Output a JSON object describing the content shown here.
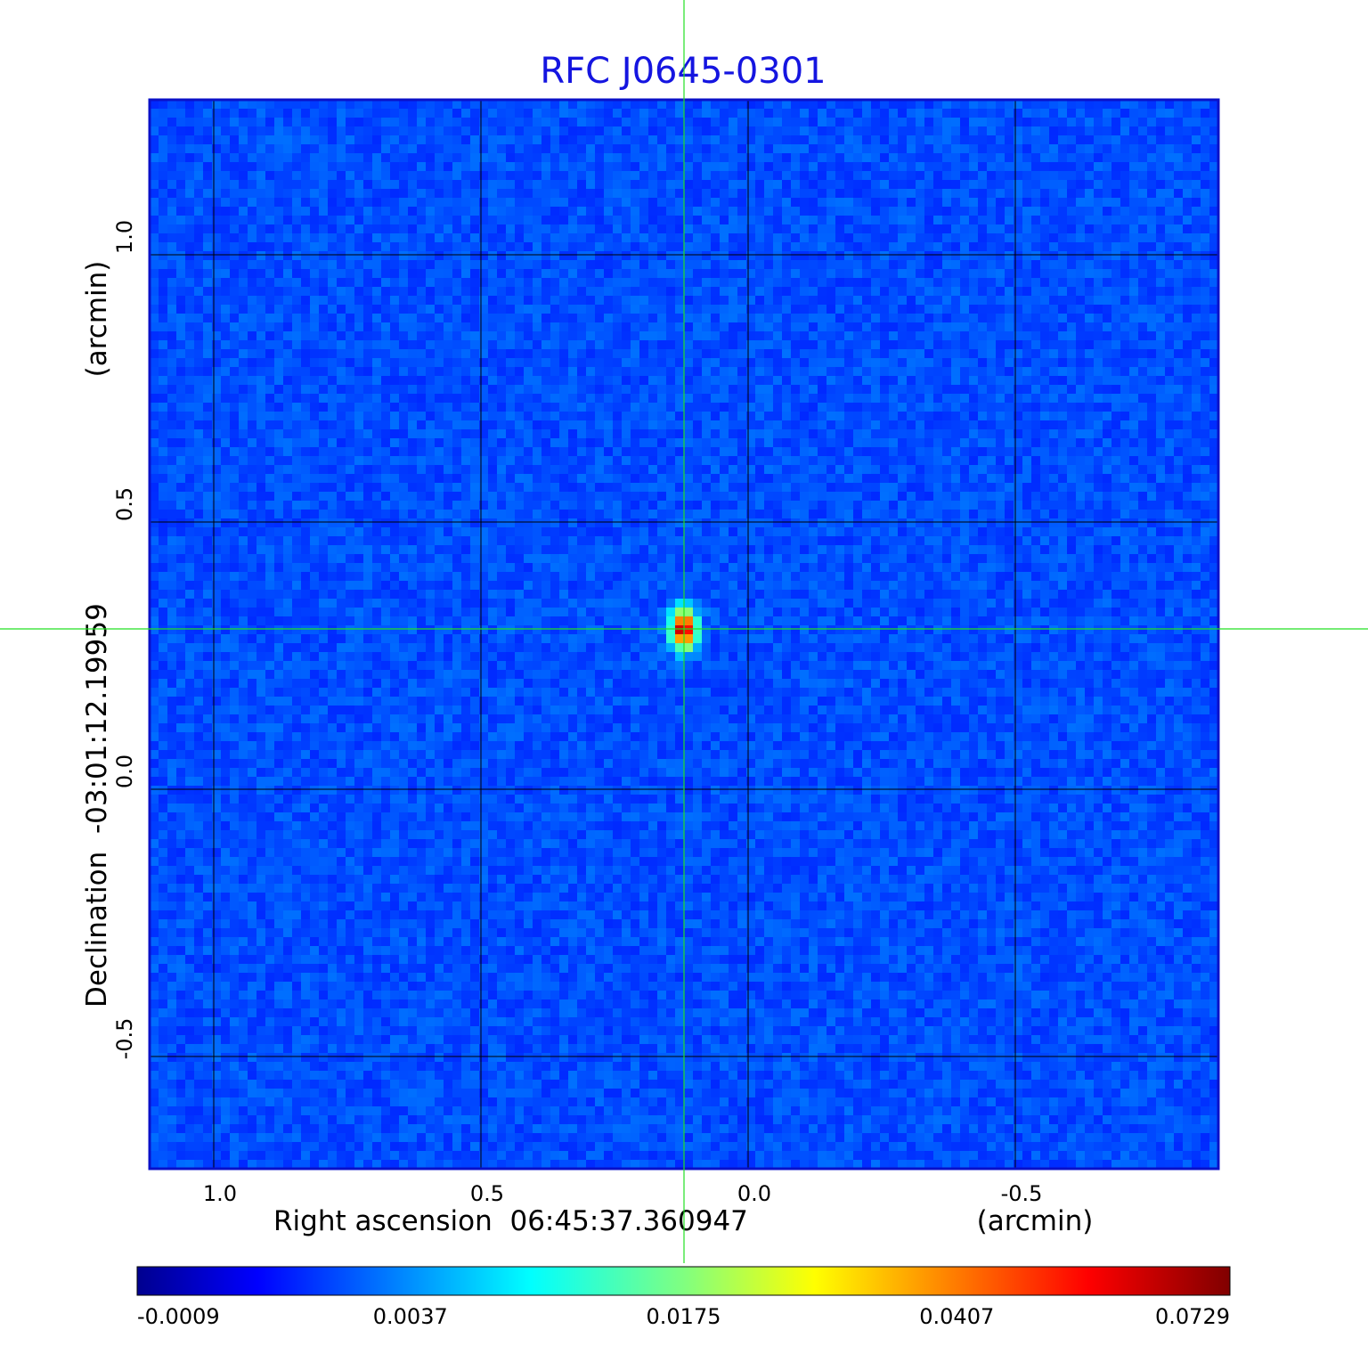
{
  "chart_data": {
    "type": "heatmap",
    "title": "RFC J0645-0301",
    "title_color": "#1515e0",
    "xlabel": "Right ascension  06:45:37.360947",
    "xunit": "(arcmin)",
    "ylabel": "Declination  -03:01:12.19959",
    "yunit": "(arcmin)",
    "xlim": [
      1.12,
      -0.88
    ],
    "ylim": [
      -0.71,
      1.29
    ],
    "x_ticks": [
      1.0,
      0.5,
      0.0,
      -0.5
    ],
    "x_tick_labels": [
      "1.0",
      "0.5",
      "0.0",
      "-0.5"
    ],
    "y_ticks": [
      1.0,
      0.5,
      0.0,
      -0.5
    ],
    "y_tick_labels": [
      "1.0",
      "0.5",
      "0.0",
      "-0.5"
    ],
    "grid": true,
    "grid_color": "#000000",
    "frame_color": "#0a10c8",
    "crosshair": {
      "x": 0.12,
      "y": 0.3,
      "color": "#22e022"
    },
    "peak": {
      "x": 0.12,
      "y": 0.3,
      "value": 0.0729
    },
    "background_level": -0.0009,
    "colormap": "jet",
    "colorbar": {
      "ticks": [
        "-0.0009",
        "0.0037",
        "0.0175",
        "0.0407",
        "0.0729"
      ],
      "min": -0.0009,
      "max": 0.0729
    }
  }
}
